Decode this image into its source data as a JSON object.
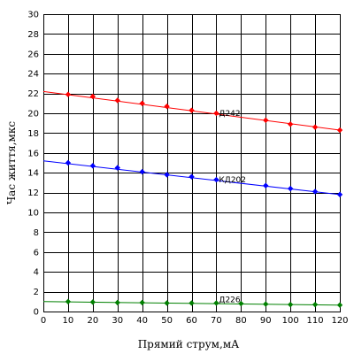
{
  "chart_data": {
    "type": "line",
    "title": "",
    "xlabel": "Прямий струм,мА",
    "ylabel": "Час життя,мкс",
    "xlim": [
      0,
      120
    ],
    "ylim": [
      0,
      30
    ],
    "xticks": [
      0,
      10,
      20,
      30,
      40,
      50,
      60,
      70,
      80,
      90,
      100,
      110,
      120
    ],
    "yticks": [
      0,
      2,
      4,
      6,
      8,
      10,
      12,
      14,
      16,
      18,
      20,
      22,
      24,
      26,
      28,
      30
    ],
    "grid": true,
    "legend": "none",
    "series": [
      {
        "name": "Д242",
        "color": "#ff0000",
        "line": {
          "x": [
            0,
            120
          ],
          "y": [
            22.2,
            18.3
          ]
        },
        "points": {
          "x": [
            10,
            20,
            30,
            40,
            50,
            60,
            70,
            90,
            100,
            110,
            120
          ],
          "y": [
            21.9,
            21.7,
            21.3,
            21.0,
            20.7,
            20.3,
            20.0,
            19.3,
            18.9,
            18.6,
            18.3
          ]
        }
      },
      {
        "name": "КД202",
        "color": "#0000ff",
        "line": {
          "x": [
            0,
            120
          ],
          "y": [
            15.2,
            11.8
          ]
        },
        "points": {
          "x": [
            10,
            20,
            30,
            40,
            50,
            60,
            70,
            90,
            100,
            110,
            120
          ],
          "y": [
            15.0,
            14.7,
            14.5,
            14.1,
            13.8,
            13.6,
            13.3,
            12.7,
            12.4,
            12.1,
            11.8
          ]
        }
      },
      {
        "name": "Д226",
        "color": "#008000",
        "line": {
          "x": [
            0,
            120
          ],
          "y": [
            1.0,
            0.65
          ]
        },
        "points": {
          "x": [
            10,
            20,
            30,
            40,
            50,
            60,
            70,
            80,
            90,
            100,
            110,
            120
          ],
          "y": [
            1.0,
            0.95,
            0.9,
            0.9,
            0.85,
            0.85,
            0.85,
            0.8,
            0.75,
            0.7,
            0.7,
            0.65
          ]
        }
      }
    ],
    "annotations": [
      {
        "text": "Д242",
        "x": 70,
        "y": 20.0
      },
      {
        "text": "КД202",
        "x": 70,
        "y": 13.3
      },
      {
        "text": "Д226",
        "x": 70,
        "y": 1.2
      }
    ]
  }
}
